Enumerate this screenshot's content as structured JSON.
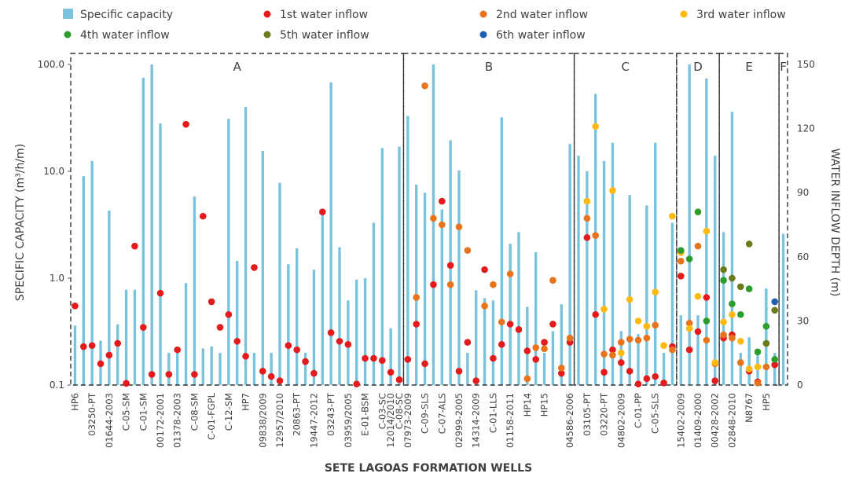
{
  "chart_data": {
    "type": "bar+scatter",
    "xlabel": "SETE LAGOAS FORMATION WELLS",
    "ylabel_left": "SPECIFIC CAPACITY (m³/h/m)",
    "ylabel_right": "WATER INFLOW DEPTH (m)",
    "yscale_left": "log",
    "ylim_left": [
      0.1,
      100
    ],
    "left_ticks": [
      "0.1",
      "1.0",
      "10.0",
      "100.0"
    ],
    "ylim_right": [
      0,
      150
    ],
    "right_ticks": [
      "0",
      "30",
      "60",
      "90",
      "120",
      "150"
    ],
    "legend_position": "top",
    "legend": [
      {
        "label": "Specific capacity",
        "color": "#79C3DC",
        "shape": "bar"
      },
      {
        "label": "1st water inflow",
        "color": "#E41A1C",
        "shape": "dot"
      },
      {
        "label": "2nd water inflow",
        "color": "#E8731B",
        "shape": "dot"
      },
      {
        "label": "3rd water inflow",
        "color": "#FFB90F",
        "shape": "dot"
      },
      {
        "label": "4th water inflow",
        "color": "#2A9D2A",
        "shape": "dot"
      },
      {
        "label": "5th water inflow",
        "color": "#6B7A1A",
        "shape": "dot"
      },
      {
        "label": "6th water inflow",
        "color": "#1F5FAF",
        "shape": "dot"
      }
    ],
    "zones": [
      {
        "label": "A",
        "start": 0,
        "end": 38
      },
      {
        "label": "B",
        "start": 39,
        "end": 58
      },
      {
        "label": "C",
        "start": 59,
        "end": 70
      },
      {
        "label": "D",
        "start": 71,
        "end": 75
      },
      {
        "label": "E",
        "start": 76,
        "end": 82
      },
      {
        "label": "F",
        "start": 83,
        "end": 83
      }
    ],
    "x_labels": [
      {
        "index": 0,
        "text": "HP6"
      },
      {
        "index": 2,
        "text": "03250-PT"
      },
      {
        "index": 4,
        "text": "01644-2003"
      },
      {
        "index": 6,
        "text": "C-05-SM"
      },
      {
        "index": 8,
        "text": "C-01-SM"
      },
      {
        "index": 10,
        "text": "00172-2001"
      },
      {
        "index": 12,
        "text": "01378-2003"
      },
      {
        "index": 14,
        "text": "C-08-SM"
      },
      {
        "index": 16,
        "text": "C-01-FGPL"
      },
      {
        "index": 18,
        "text": "C-12-SM"
      },
      {
        "index": 20,
        "text": "HP7"
      },
      {
        "index": 22,
        "text": "09838/2009"
      },
      {
        "index": 24,
        "text": "12957/2010"
      },
      {
        "index": 26,
        "text": "20863-PT"
      },
      {
        "index": 28,
        "text": "19447-2012"
      },
      {
        "index": 30,
        "text": "03243-PT"
      },
      {
        "index": 32,
        "text": "03959/2005"
      },
      {
        "index": 34,
        "text": "E-01-BSM"
      },
      {
        "index": 36,
        "text": "C-03-SC"
      },
      {
        "index": 37,
        "text": "12014/2010"
      },
      {
        "index": 38,
        "text": "C-08-SC"
      },
      {
        "index": 39,
        "text": "07973-2009"
      },
      {
        "index": 41,
        "text": "C-09-SLS"
      },
      {
        "index": 43,
        "text": "C-07-ALS"
      },
      {
        "index": 45,
        "text": "02999-2005"
      },
      {
        "index": 47,
        "text": "14314-2009"
      },
      {
        "index": 49,
        "text": "C-01-LLS"
      },
      {
        "index": 51,
        "text": "01158-2011"
      },
      {
        "index": 53,
        "text": "HP14"
      },
      {
        "index": 55,
        "text": "HP15"
      },
      {
        "index": 58,
        "text": "04586-2006"
      },
      {
        "index": 60,
        "text": "03105-PT"
      },
      {
        "index": 62,
        "text": "03220-PT"
      },
      {
        "index": 64,
        "text": "04802-2009"
      },
      {
        "index": 66,
        "text": "C-01-PP"
      },
      {
        "index": 68,
        "text": "C-05-SLS"
      },
      {
        "index": 71,
        "text": "15402-2009"
      },
      {
        "index": 73,
        "text": "01409-2000"
      },
      {
        "index": 75,
        "text": "00428-2002"
      },
      {
        "index": 77,
        "text": "02848-2010"
      },
      {
        "index": 79,
        "text": "N8767"
      },
      {
        "index": 81,
        "text": "HP5"
      }
    ],
    "specific_capacity": [
      0.36,
      9.0,
      12.5,
      0.26,
      4.3,
      0.37,
      0.78,
      0.78,
      75,
      100,
      28,
      0.2,
      0.2,
      0.9,
      5.8,
      0.22,
      0.23,
      0.2,
      31,
      1.45,
      40,
      0.2,
      15.5,
      0.2,
      7.8,
      1.35,
      1.9,
      0.2,
      1.2,
      4.0,
      68,
      1.95,
      0.62,
      0.97,
      1.0,
      3.3,
      16.5,
      0.34,
      17.0,
      33,
      7.5,
      6.3,
      100,
      4.4,
      19.5,
      10.2,
      0.2,
      0.77,
      0.65,
      0.62,
      32,
      2.1,
      2.7,
      0.54,
      1.75,
      0.2,
      0.32,
      0.57,
      18,
      14,
      10,
      53,
      12.5,
      18.5,
      0.32,
      6.0,
      0.3,
      4.8,
      18.5,
      0.2,
      3.3,
      0.45,
      100,
      0.45,
      74,
      14,
      2.7,
      36,
      0.2,
      0.28,
      0.21,
      0.8,
      0.2,
      2.6
    ],
    "inflow_1st": [
      [
        0,
        37
      ],
      [
        1,
        18
      ],
      [
        2,
        18.5
      ],
      [
        3,
        10
      ],
      [
        4,
        14
      ],
      [
        5,
        19.5
      ],
      [
        6,
        0.8
      ],
      [
        7,
        65
      ],
      [
        8,
        27
      ],
      [
        9,
        5
      ],
      [
        10,
        43
      ],
      [
        11,
        5
      ],
      [
        12,
        16.5
      ],
      [
        13,
        122
      ],
      [
        14,
        5
      ],
      [
        15,
        79
      ],
      [
        16,
        39
      ],
      [
        17,
        27
      ],
      [
        18,
        33
      ],
      [
        19,
        20.5
      ],
      [
        20,
        13.5
      ],
      [
        21,
        55
      ],
      [
        22,
        6.5
      ],
      [
        23,
        4
      ],
      [
        24,
        2
      ],
      [
        25,
        18.5
      ],
      [
        26,
        16.5
      ],
      [
        27,
        11
      ],
      [
        28,
        5.5
      ],
      [
        29,
        81
      ],
      [
        30,
        24.5
      ],
      [
        31,
        20.5
      ],
      [
        32,
        19
      ],
      [
        33,
        0.5
      ],
      [
        34,
        12.5
      ],
      [
        35,
        12.5
      ],
      [
        36,
        11.5
      ],
      [
        37,
        6
      ],
      [
        38,
        2.5
      ],
      [
        39,
        12
      ],
      [
        40,
        28.5
      ],
      [
        41,
        10
      ],
      [
        42,
        47
      ],
      [
        43,
        86
      ],
      [
        44,
        56
      ],
      [
        45,
        6.5
      ],
      [
        46,
        20
      ],
      [
        47,
        2
      ],
      [
        48,
        54
      ],
      [
        49,
        12.5
      ],
      [
        50,
        19
      ],
      [
        51,
        28.5
      ],
      [
        52,
        26
      ],
      [
        53,
        16
      ],
      [
        54,
        12
      ],
      [
        55,
        20
      ],
      [
        56,
        28.5
      ],
      [
        57,
        5.5
      ],
      [
        58,
        20
      ],
      [
        60,
        69
      ],
      [
        61,
        33
      ],
      [
        62,
        6
      ],
      [
        63,
        16.5
      ],
      [
        64,
        10.5
      ],
      [
        65,
        6.5
      ],
      [
        66,
        0.5
      ],
      [
        67,
        3
      ],
      [
        68,
        4
      ],
      [
        69,
        1
      ],
      [
        70,
        18
      ],
      [
        71,
        51
      ],
      [
        72,
        16.5
      ],
      [
        73,
        25
      ],
      [
        74,
        41
      ],
      [
        75,
        2
      ],
      [
        76,
        22
      ],
      [
        77,
        23.5
      ],
      [
        79,
        6.5
      ],
      [
        80,
        1.5
      ],
      [
        82,
        9.5
      ]
    ],
    "inflow_2nd": [
      [
        40,
        41
      ],
      [
        41,
        140
      ],
      [
        42,
        78
      ],
      [
        43,
        75
      ],
      [
        44,
        47
      ],
      [
        45,
        74
      ],
      [
        46,
        63
      ],
      [
        48,
        37
      ],
      [
        49,
        47
      ],
      [
        50,
        29.5
      ],
      [
        51,
        52
      ],
      [
        53,
        3
      ],
      [
        54,
        17.5
      ],
      [
        55,
        17
      ],
      [
        56,
        49
      ],
      [
        57,
        8
      ],
      [
        58,
        22
      ],
      [
        60,
        78
      ],
      [
        61,
        70
      ],
      [
        62,
        14.5
      ],
      [
        63,
        14
      ],
      [
        64,
        20
      ],
      [
        65,
        21.5
      ],
      [
        66,
        21
      ],
      [
        67,
        22
      ],
      [
        68,
        28
      ],
      [
        70,
        16.5
      ],
      [
        71,
        58
      ],
      [
        72,
        29
      ],
      [
        73,
        65
      ],
      [
        74,
        21
      ],
      [
        75,
        10
      ],
      [
        76,
        23.5
      ],
      [
        77,
        22
      ],
      [
        78,
        10.5
      ],
      [
        80,
        1
      ],
      [
        81,
        8.5
      ]
    ],
    "inflow_3rd": [
      [
        60,
        86
      ],
      [
        61,
        121
      ],
      [
        62,
        35.5
      ],
      [
        63,
        91
      ],
      [
        64,
        15
      ],
      [
        65,
        40
      ],
      [
        66,
        30
      ],
      [
        67,
        27.5
      ],
      [
        68,
        43.5
      ],
      [
        69,
        18.5
      ],
      [
        70,
        79
      ],
      [
        71,
        62
      ],
      [
        72,
        26.5
      ],
      [
        73,
        41.5
      ],
      [
        74,
        72
      ],
      [
        75,
        10.5
      ],
      [
        76,
        29.5
      ],
      [
        77,
        33
      ],
      [
        78,
        20.5
      ],
      [
        79,
        7.5
      ],
      [
        80,
        8.5
      ],
      [
        81,
        19.5
      ]
    ],
    "inflow_4th": [
      [
        71,
        63
      ],
      [
        72,
        59
      ],
      [
        73,
        81
      ],
      [
        74,
        30
      ],
      [
        76,
        49
      ],
      [
        77,
        38
      ],
      [
        78,
        33
      ],
      [
        79,
        45
      ],
      [
        80,
        15.5
      ],
      [
        81,
        27.5
      ],
      [
        82,
        12
      ]
    ],
    "inflow_5th": [
      [
        76,
        54
      ],
      [
        77,
        50
      ],
      [
        78,
        46
      ],
      [
        79,
        66
      ],
      [
        81,
        19.5
      ],
      [
        82,
        35
      ]
    ],
    "inflow_6th": [
      [
        82,
        39
      ]
    ]
  }
}
